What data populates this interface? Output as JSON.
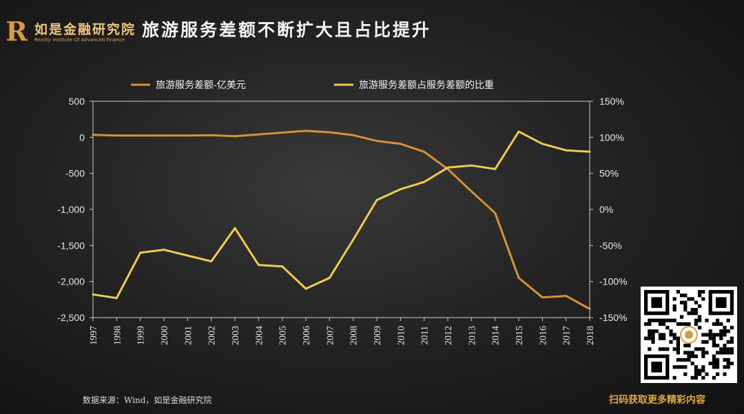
{
  "brand": {
    "logo_letter": "R",
    "name_cn": "如是金融研究院",
    "name_en": "Reality Institute Of Advanced Finance"
  },
  "title": "旅游服务差额不断扩大且占比提升",
  "source": "数据来源：Wind，如是金融研究院",
  "qr_caption": "扫码获取更多精彩内容",
  "colors": {
    "series1": "#d9913a",
    "series2": "#f0cb52",
    "axis": "#cfcfcf",
    "plot_border": "#cfcfcf"
  },
  "chart_data": {
    "type": "line",
    "title": "",
    "categories": [
      "1997",
      "1998",
      "1999",
      "2000",
      "2001",
      "2002",
      "2003",
      "2004",
      "2005",
      "2006",
      "2007",
      "2008",
      "2009",
      "2010",
      "2011",
      "2012",
      "2013",
      "2014",
      "2015",
      "2016",
      "2017",
      "2018"
    ],
    "y_left": {
      "range": [
        -2500,
        500
      ],
      "ticks": [
        500,
        0,
        -500,
        -1000,
        -1500,
        -2000,
        -2500
      ],
      "tick_labels": [
        "500",
        "0",
        "-500",
        "-1,000",
        "-1,500",
        "-2,000",
        "-2,500"
      ]
    },
    "y_right": {
      "range": [
        -150,
        150
      ],
      "ticks": [
        150,
        100,
        50,
        0,
        -50,
        -100,
        -150
      ],
      "tick_labels": [
        "150%",
        "100%",
        "50%",
        "0%",
        "-50%",
        "-100%",
        "-150%"
      ]
    },
    "legend_position": "top",
    "grid": false,
    "series": [
      {
        "name": "旅游服务差额-亿美元",
        "axis": "left",
        "color": "#d9913a",
        "values": [
          35,
          25,
          25,
          25,
          25,
          30,
          15,
          40,
          65,
          90,
          70,
          30,
          -50,
          -90,
          -200,
          -440,
          -750,
          -1050,
          -1950,
          -2220,
          -2200,
          -2380
        ]
      },
      {
        "name": "旅游服务差额占服务差额的比重",
        "axis": "right",
        "color": "#f0cb52",
        "values": [
          -118,
          -123,
          -60,
          -56,
          -64,
          -72,
          -26,
          -77,
          -79,
          -110,
          -95,
          -42,
          13,
          28,
          38,
          58,
          61,
          56,
          108,
          91,
          82,
          80
        ]
      }
    ]
  }
}
